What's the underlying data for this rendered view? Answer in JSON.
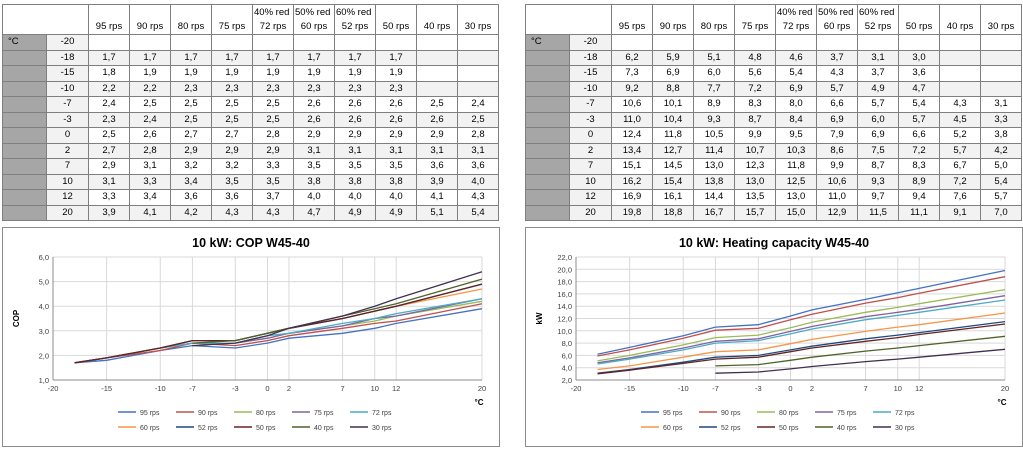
{
  "tables": [
    {
      "notes": [
        "40% red",
        "50% red",
        "60% red"
      ],
      "columns": [
        "95 rps",
        "90 rps",
        "80 rps",
        "75 rps",
        "72 rps",
        "60 rps",
        "52 rps",
        "50 rps",
        "40 rps",
        "30 rps"
      ],
      "unit": "°C",
      "rows": [
        {
          "t": "-20",
          "v": [
            "",
            "",
            "",
            "",
            "",
            "",
            "",
            "",
            "",
            ""
          ]
        },
        {
          "t": "-18",
          "v": [
            "1,7",
            "1,7",
            "1,7",
            "1,7",
            "1,7",
            "1,7",
            "1,7",
            "1,7",
            "",
            ""
          ]
        },
        {
          "t": "-15",
          "v": [
            "1,8",
            "1,9",
            "1,9",
            "1,9",
            "1,9",
            "1,9",
            "1,9",
            "1,9",
            "",
            ""
          ]
        },
        {
          "t": "-10",
          "v": [
            "2,2",
            "2,2",
            "2,3",
            "2,3",
            "2,3",
            "2,3",
            "2,3",
            "2,3",
            "",
            ""
          ]
        },
        {
          "t": "-7",
          "v": [
            "2,4",
            "2,5",
            "2,5",
            "2,5",
            "2,5",
            "2,6",
            "2,6",
            "2,6",
            "2,5",
            "2,4"
          ]
        },
        {
          "t": "-3",
          "v": [
            "2,3",
            "2,4",
            "2,5",
            "2,5",
            "2,5",
            "2,6",
            "2,6",
            "2,6",
            "2,6",
            "2,5"
          ]
        },
        {
          "t": "0",
          "v": [
            "2,5",
            "2,6",
            "2,7",
            "2,7",
            "2,8",
            "2,9",
            "2,9",
            "2,9",
            "2,9",
            "2,8"
          ]
        },
        {
          "t": "2",
          "v": [
            "2,7",
            "2,8",
            "2,9",
            "2,9",
            "2,9",
            "3,1",
            "3,1",
            "3,1",
            "3,1",
            "3,1"
          ]
        },
        {
          "t": "7",
          "v": [
            "2,9",
            "3,1",
            "3,2",
            "3,2",
            "3,3",
            "3,5",
            "3,5",
            "3,5",
            "3,6",
            "3,6"
          ]
        },
        {
          "t": "10",
          "v": [
            "3,1",
            "3,3",
            "3,4",
            "3,5",
            "3,5",
            "3,8",
            "3,8",
            "3,8",
            "3,9",
            "4,0"
          ]
        },
        {
          "t": "12",
          "v": [
            "3,3",
            "3,4",
            "3,6",
            "3,6",
            "3,7",
            "4,0",
            "4,0",
            "4,0",
            "4,1",
            "4,3"
          ]
        },
        {
          "t": "20",
          "v": [
            "3,9",
            "4,1",
            "4,2",
            "4,3",
            "4,3",
            "4,7",
            "4,9",
            "4,9",
            "5,1",
            "5,4"
          ]
        }
      ]
    },
    {
      "notes": [
        "40% red",
        "50% red",
        "60% red"
      ],
      "columns": [
        "95 rps",
        "90 rps",
        "80 rps",
        "75 rps",
        "72 rps",
        "60 rps",
        "52 rps",
        "50 rps",
        "40 rps",
        "30 rps"
      ],
      "unit": "°C",
      "rows": [
        {
          "t": "-20",
          "v": [
            "",
            "",
            "",
            "",
            "",
            "",
            "",
            "",
            "",
            ""
          ]
        },
        {
          "t": "-18",
          "v": [
            "6,2",
            "5,9",
            "5,1",
            "4,8",
            "4,6",
            "3,7",
            "3,1",
            "3,0",
            "",
            ""
          ]
        },
        {
          "t": "-15",
          "v": [
            "7,3",
            "6,9",
            "6,0",
            "5,6",
            "5,4",
            "4,3",
            "3,7",
            "3,6",
            "",
            ""
          ]
        },
        {
          "t": "-10",
          "v": [
            "9,2",
            "8,8",
            "7,7",
            "7,2",
            "6,9",
            "5,7",
            "4,9",
            "4,7",
            "",
            ""
          ]
        },
        {
          "t": "-7",
          "v": [
            "10,6",
            "10,1",
            "8,9",
            "8,3",
            "8,0",
            "6,6",
            "5,7",
            "5,4",
            "4,3",
            "3,1"
          ]
        },
        {
          "t": "-3",
          "v": [
            "11,0",
            "10,4",
            "9,3",
            "8,7",
            "8,4",
            "6,9",
            "6,0",
            "5,7",
            "4,5",
            "3,3"
          ]
        },
        {
          "t": "0",
          "v": [
            "12,4",
            "11,8",
            "10,5",
            "9,9",
            "9,5",
            "7,9",
            "6,9",
            "6,6",
            "5,2",
            "3,8"
          ]
        },
        {
          "t": "2",
          "v": [
            "13,4",
            "12,7",
            "11,4",
            "10,7",
            "10,3",
            "8,6",
            "7,5",
            "7,2",
            "5,7",
            "4,2"
          ]
        },
        {
          "t": "7",
          "v": [
            "15,1",
            "14,5",
            "13,0",
            "12,3",
            "11,8",
            "9,9",
            "8,7",
            "8,3",
            "6,7",
            "5,0"
          ]
        },
        {
          "t": "10",
          "v": [
            "16,2",
            "15,4",
            "13,8",
            "13,0",
            "12,5",
            "10,6",
            "9,3",
            "8,9",
            "7,2",
            "5,4"
          ]
        },
        {
          "t": "12",
          "v": [
            "16,9",
            "16,1",
            "14,4",
            "13,5",
            "13,0",
            "11,0",
            "9,7",
            "9,4",
            "7,6",
            "5,7"
          ]
        },
        {
          "t": "20",
          "v": [
            "19,8",
            "18,8",
            "16,7",
            "15,7",
            "15,0",
            "12,9",
            "11,5",
            "11,1",
            "9,1",
            "7,0"
          ]
        }
      ]
    }
  ],
  "series_colors": [
    "#4472c4",
    "#c0504d",
    "#9bbb59",
    "#8064a2",
    "#4bacc6",
    "#f79646",
    "#1f497d",
    "#632523",
    "#4f6228",
    "#403151"
  ],
  "chart_data": [
    {
      "type": "line",
      "title": "10 kW: COP W45-40",
      "ylabel": "COP",
      "xlabel": "°C",
      "xlim": [
        -20,
        20
      ],
      "ylim": [
        1.0,
        6.0
      ],
      "x_ticks": [
        -20,
        -15,
        -10,
        -7,
        -3,
        0,
        2,
        7,
        10,
        12,
        20
      ],
      "x_tick_labels": [
        "-20",
        "-15",
        "-10",
        "-7",
        "-3",
        "0",
        "2",
        "7",
        "10",
        "12",
        "20"
      ],
      "y_ticks": [
        1.0,
        2.0,
        3.0,
        4.0,
        5.0,
        6.0
      ],
      "y_tick_labels": [
        "1,0",
        "2,0",
        "3,0",
        "4,0",
        "5,0",
        "6,0"
      ],
      "grid": true,
      "legend_position": "bottom",
      "x": [
        -18,
        -15,
        -10,
        -7,
        -3,
        0,
        2,
        7,
        10,
        12,
        20
      ],
      "series": [
        {
          "name": "95 rps",
          "values": [
            1.7,
            1.8,
            2.2,
            2.4,
            2.3,
            2.5,
            2.7,
            2.9,
            3.1,
            3.3,
            3.9
          ]
        },
        {
          "name": "90 rps",
          "values": [
            1.7,
            1.9,
            2.2,
            2.5,
            2.4,
            2.6,
            2.8,
            3.1,
            3.3,
            3.4,
            4.1
          ]
        },
        {
          "name": "80 rps",
          "values": [
            1.7,
            1.9,
            2.3,
            2.5,
            2.5,
            2.7,
            2.9,
            3.2,
            3.4,
            3.6,
            4.2
          ]
        },
        {
          "name": "75 rps",
          "values": [
            1.7,
            1.9,
            2.3,
            2.5,
            2.5,
            2.7,
            2.9,
            3.2,
            3.5,
            3.6,
            4.3
          ]
        },
        {
          "name": "72 rps",
          "values": [
            1.7,
            1.9,
            2.3,
            2.5,
            2.5,
            2.8,
            2.9,
            3.3,
            3.5,
            3.7,
            4.3
          ]
        },
        {
          "name": "60 rps",
          "values": [
            1.7,
            1.9,
            2.3,
            2.6,
            2.6,
            2.9,
            3.1,
            3.5,
            3.8,
            4.0,
            4.7
          ]
        },
        {
          "name": "52 rps",
          "values": [
            1.7,
            1.9,
            2.3,
            2.6,
            2.6,
            2.9,
            3.1,
            3.5,
            3.8,
            4.0,
            4.9
          ]
        },
        {
          "name": "50 rps",
          "values": [
            1.7,
            1.9,
            2.3,
            2.6,
            2.6,
            2.9,
            3.1,
            3.5,
            3.8,
            4.0,
            4.9
          ]
        },
        {
          "name": "40 rps",
          "values": [
            null,
            null,
            null,
            2.5,
            2.6,
            2.9,
            3.1,
            3.6,
            3.9,
            4.1,
            5.1
          ]
        },
        {
          "name": "30 rps",
          "values": [
            null,
            null,
            null,
            2.4,
            2.5,
            2.8,
            3.1,
            3.6,
            4.0,
            4.3,
            5.4
          ]
        }
      ]
    },
    {
      "type": "line",
      "title": "10 kW: Heating capacity W45-40",
      "ylabel": "kW",
      "xlabel": "°C",
      "xlim": [
        -20,
        20
      ],
      "ylim": [
        2.0,
        22.0
      ],
      "x_ticks": [
        -20,
        -15,
        -10,
        -7,
        -3,
        0,
        2,
        7,
        10,
        12,
        20
      ],
      "x_tick_labels": [
        "-20",
        "-15",
        "-10",
        "-7",
        "-3",
        "0",
        "2",
        "7",
        "10",
        "12",
        "20"
      ],
      "y_ticks": [
        2,
        4,
        6,
        8,
        10,
        12,
        14,
        16,
        18,
        20,
        22
      ],
      "y_tick_labels": [
        "2,0",
        "4,0",
        "6,0",
        "8,0",
        "10,0",
        "12,0",
        "14,0",
        "16,0",
        "18,0",
        "20,0",
        "22,0"
      ],
      "grid": true,
      "legend_position": "bottom",
      "x": [
        -18,
        -15,
        -10,
        -7,
        -3,
        0,
        2,
        7,
        10,
        12,
        20
      ],
      "series": [
        {
          "name": "95 rps",
          "values": [
            6.2,
            7.3,
            9.2,
            10.6,
            11.0,
            12.4,
            13.4,
            15.1,
            16.2,
            16.9,
            19.8
          ]
        },
        {
          "name": "90 rps",
          "values": [
            5.9,
            6.9,
            8.8,
            10.1,
            10.4,
            11.8,
            12.7,
            14.5,
            15.4,
            16.1,
            18.8
          ]
        },
        {
          "name": "80 rps",
          "values": [
            5.1,
            6.0,
            7.7,
            8.9,
            9.3,
            10.5,
            11.4,
            13.0,
            13.8,
            14.4,
            16.7
          ]
        },
        {
          "name": "75 rps",
          "values": [
            4.8,
            5.6,
            7.2,
            8.3,
            8.7,
            9.9,
            10.7,
            12.3,
            13.0,
            13.5,
            15.7
          ]
        },
        {
          "name": "72 rps",
          "values": [
            4.6,
            5.4,
            6.9,
            8.0,
            8.4,
            9.5,
            10.3,
            11.8,
            12.5,
            13.0,
            15.0
          ]
        },
        {
          "name": "60 rps",
          "values": [
            3.7,
            4.3,
            5.7,
            6.6,
            6.9,
            7.9,
            8.6,
            9.9,
            10.6,
            11.0,
            12.9
          ]
        },
        {
          "name": "52 rps",
          "values": [
            3.1,
            3.7,
            4.9,
            5.7,
            6.0,
            6.9,
            7.5,
            8.7,
            9.3,
            9.7,
            11.5
          ]
        },
        {
          "name": "50 rps",
          "values": [
            3.0,
            3.6,
            4.7,
            5.4,
            5.7,
            6.6,
            7.2,
            8.3,
            8.9,
            9.4,
            11.1
          ]
        },
        {
          "name": "40 rps",
          "values": [
            null,
            null,
            null,
            4.3,
            4.5,
            5.2,
            5.7,
            6.7,
            7.2,
            7.6,
            9.1
          ]
        },
        {
          "name": "30 rps",
          "values": [
            null,
            null,
            null,
            3.1,
            3.3,
            3.8,
            4.2,
            5.0,
            5.4,
            5.7,
            7.0
          ]
        }
      ]
    }
  ]
}
